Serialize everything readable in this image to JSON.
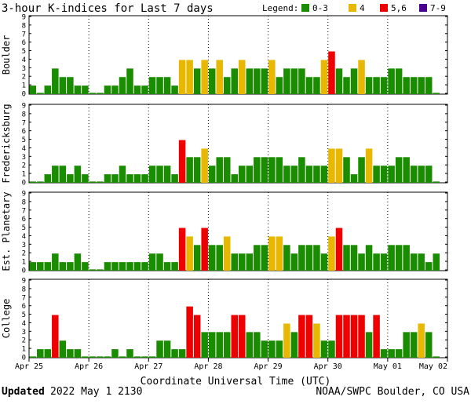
{
  "header": {
    "title": "3-hour K-indices for Last 7 days",
    "legend_label": "Legend:",
    "legend_items": [
      {
        "label": "0-3",
        "color": "#1a8c00"
      },
      {
        "label": "4",
        "color": "#e8b800"
      },
      {
        "label": "5,6",
        "color": "#ee0000"
      },
      {
        "label": "7-9",
        "color": "#4b0090"
      }
    ]
  },
  "footer": {
    "updated_label": "Updated",
    "updated_time": "2022 May  1 2130",
    "source": "NOAA/SWPC Boulder, CO USA"
  },
  "chart_data": {
    "type": "bar",
    "xlabel": "Coordinate Universal Time (UTC)",
    "x_ticks": [
      "Apr 25",
      "Apr 26",
      "Apr 27",
      "Apr 28",
      "Apr 29",
      "Apr 30",
      "May 01",
      "May 02"
    ],
    "y_ticks": [
      "0",
      "1",
      "2",
      "3",
      "4",
      "5",
      "6",
      "7",
      "8",
      "9"
    ],
    "ylim": [
      0,
      9
    ],
    "bins_per_day": 8,
    "color_scale": [
      {
        "range": "0-3",
        "color": "#1a8c00"
      },
      {
        "range": "4",
        "color": "#e8b800"
      },
      {
        "range": "5,6",
        "color": "#ee0000"
      },
      {
        "range": "7-9",
        "color": "#4b0090"
      }
    ],
    "series": [
      {
        "name": "Boulder",
        "values": [
          1,
          0,
          1,
          3,
          2,
          2,
          1,
          1,
          0,
          0,
          1,
          1,
          2,
          3,
          1,
          1,
          2,
          2,
          2,
          1,
          4,
          4,
          3,
          4,
          3,
          4,
          2,
          3,
          4,
          3,
          3,
          3,
          4,
          2,
          3,
          3,
          3,
          2,
          2,
          4,
          5,
          3,
          2,
          3,
          4,
          2,
          2,
          2,
          3,
          3,
          2,
          2,
          2,
          2,
          0
        ]
      },
      {
        "name": "Fredericksburg",
        "values": [
          0,
          0,
          1,
          2,
          2,
          1,
          2,
          1,
          0,
          0,
          1,
          1,
          2,
          1,
          1,
          1,
          2,
          2,
          2,
          1,
          5,
          3,
          3,
          4,
          2,
          3,
          3,
          1,
          2,
          2,
          3,
          3,
          3,
          3,
          2,
          2,
          3,
          2,
          2,
          2,
          4,
          4,
          3,
          1,
          3,
          4,
          2,
          2,
          2,
          3,
          3,
          2,
          2,
          2,
          0
        ]
      },
      {
        "name": "Est. Planetary",
        "values": [
          1,
          1,
          1,
          2,
          1,
          1,
          2,
          1,
          0,
          0,
          1,
          1,
          1,
          1,
          1,
          1,
          2,
          2,
          1,
          1,
          5,
          4,
          3,
          5,
          3,
          3,
          4,
          2,
          2,
          2,
          3,
          3,
          4,
          4,
          3,
          2,
          3,
          3,
          3,
          2,
          4,
          5,
          3,
          3,
          2,
          3,
          2,
          2,
          3,
          3,
          3,
          2,
          2,
          1,
          2
        ]
      },
      {
        "name": "College",
        "values": [
          0,
          1,
          1,
          5,
          2,
          1,
          1,
          0,
          0,
          0,
          0,
          1,
          0,
          1,
          0,
          0,
          0,
          2,
          2,
          1,
          1,
          6,
          5,
          3,
          3,
          3,
          3,
          5,
          5,
          3,
          3,
          2,
          2,
          2,
          4,
          3,
          5,
          5,
          4,
          2,
          2,
          5,
          5,
          5,
          5,
          3,
          5,
          1,
          1,
          1,
          3,
          3,
          4,
          3,
          0
        ]
      }
    ]
  }
}
